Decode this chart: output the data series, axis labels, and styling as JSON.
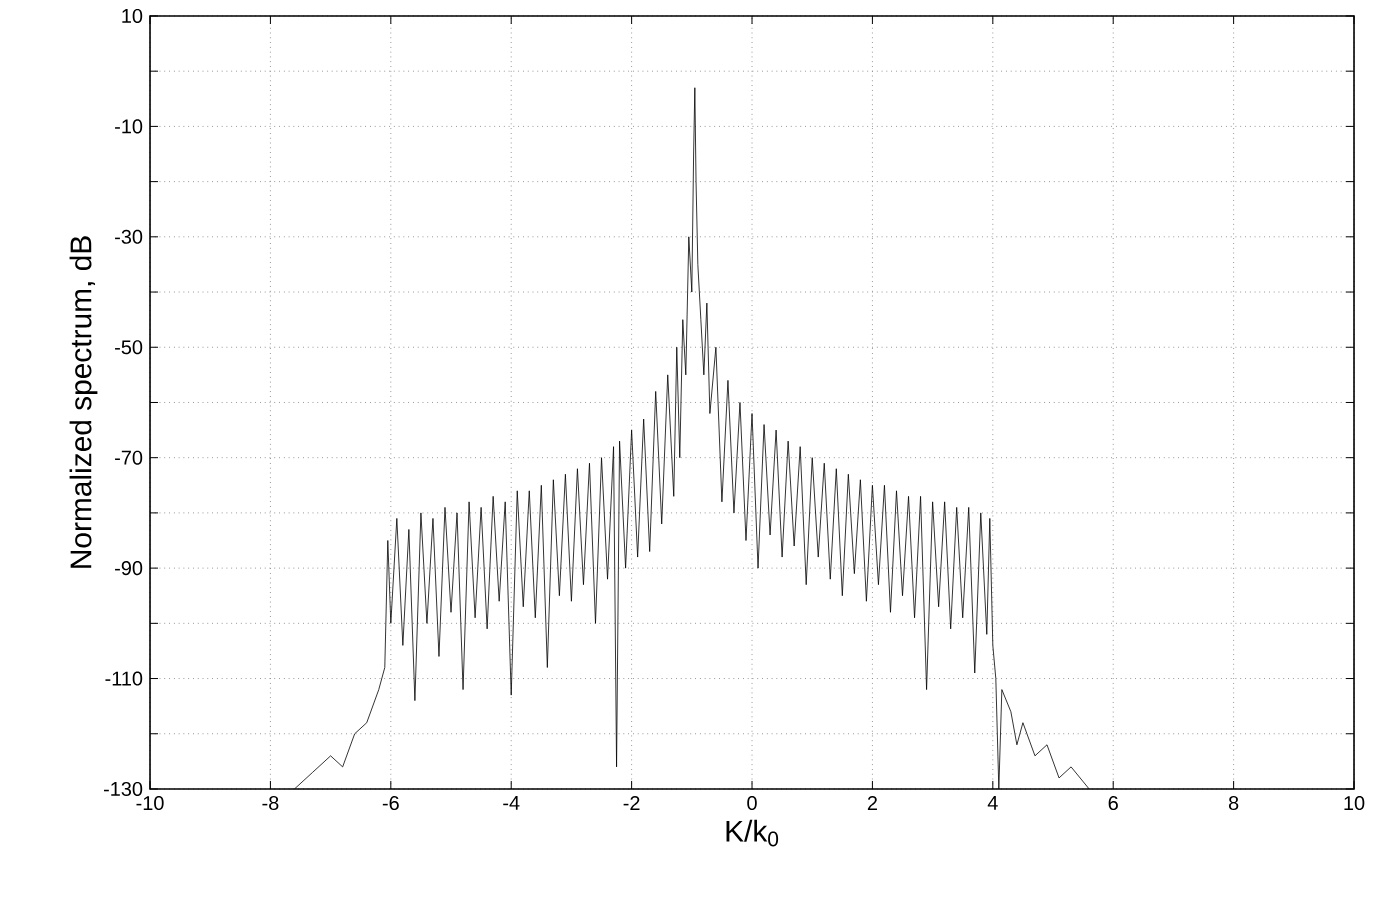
{
  "chart_data": {
    "type": "line",
    "xlabel": "K/k$_{0}$",
    "ylabel": "Normalized spectrum, dB",
    "xlim": [
      -10,
      10
    ],
    "ylim": [
      -130,
      10
    ],
    "xticks": [
      -10,
      -8,
      -6,
      -4,
      -2,
      0,
      2,
      4,
      6,
      8,
      10
    ],
    "yticks": [
      -130,
      {
        "value": -120,
        "label": null
      },
      -110,
      {
        "value": -100,
        "label": null
      },
      -90,
      {
        "value": -80,
        "label": null
      },
      -70,
      {
        "value": -60,
        "label": null
      },
      -50,
      {
        "value": -40,
        "label": null
      },
      -30,
      {
        "value": -20,
        "label": null
      },
      -10,
      {
        "value": 0,
        "label": null
      },
      10
    ],
    "grid": true,
    "x": [
      -7.6,
      -7.3,
      -7.0,
      -6.8,
      -6.6,
      -6.4,
      -6.2,
      -6.1,
      -6.05,
      -6.0,
      -5.9,
      -5.8,
      -5.7,
      -5.6,
      -5.5,
      -5.4,
      -5.3,
      -5.2,
      -5.1,
      -5.0,
      -4.9,
      -4.8,
      -4.7,
      -4.6,
      -4.5,
      -4.4,
      -4.3,
      -4.2,
      -4.1,
      -4.0,
      -3.9,
      -3.8,
      -3.7,
      -3.6,
      -3.5,
      -3.4,
      -3.3,
      -3.2,
      -3.1,
      -3.0,
      -2.9,
      -2.8,
      -2.7,
      -2.6,
      -2.5,
      -2.4,
      -2.3,
      -2.25,
      -2.2,
      -2.1,
      -2.0,
      -1.9,
      -1.8,
      -1.7,
      -1.6,
      -1.5,
      -1.4,
      -1.3,
      -1.25,
      -1.2,
      -1.15,
      -1.1,
      -1.05,
      -1.0,
      -0.97,
      -0.95,
      -0.93,
      -0.9,
      -0.85,
      -0.8,
      -0.75,
      -0.7,
      -0.6,
      -0.5,
      -0.4,
      -0.3,
      -0.2,
      -0.1,
      0.0,
      0.1,
      0.2,
      0.3,
      0.4,
      0.5,
      0.6,
      0.7,
      0.8,
      0.9,
      1.0,
      1.1,
      1.2,
      1.3,
      1.4,
      1.5,
      1.6,
      1.7,
      1.8,
      1.9,
      2.0,
      2.1,
      2.2,
      2.3,
      2.4,
      2.5,
      2.6,
      2.7,
      2.8,
      2.9,
      3.0,
      3.1,
      3.2,
      3.3,
      3.4,
      3.5,
      3.6,
      3.7,
      3.8,
      3.9,
      3.95,
      4.0,
      4.05,
      4.1,
      4.15,
      4.3,
      4.4,
      4.5,
      4.7,
      4.9,
      5.1,
      5.3,
      5.6
    ],
    "series": [
      {
        "color": "#000000",
        "values": [
          -130,
          -127,
          -124,
          -126,
          -120,
          -118,
          -112,
          -108,
          -85,
          -100,
          -81,
          -104,
          -83,
          -114,
          -80,
          -100,
          -81,
          -106,
          -79,
          -98,
          -80,
          -112,
          -78,
          -99,
          -79,
          -101,
          -77,
          -96,
          -78,
          -113,
          -76,
          -97,
          -76,
          -99,
          -75,
          -108,
          -74,
          -95,
          -73,
          -96,
          -72,
          -93,
          -71,
          -100,
          -70,
          -92,
          -68,
          -126,
          -67,
          -90,
          -65,
          -88,
          -63,
          -87,
          -58,
          -82,
          -55,
          -77,
          -50,
          -70,
          -45,
          -55,
          -30,
          -40,
          -15,
          -3,
          -20,
          -35,
          -45,
          -55,
          -42,
          -62,
          -50,
          -78,
          -56,
          -80,
          -60,
          -85,
          -62,
          -90,
          -64,
          -84,
          -65,
          -88,
          -67,
          -86,
          -68,
          -93,
          -70,
          -88,
          -71,
          -92,
          -72,
          -95,
          -73,
          -91,
          -74,
          -96,
          -75,
          -93,
          -75,
          -98,
          -76,
          -95,
          -77,
          -99,
          -77,
          -112,
          -78,
          -97,
          -78,
          -101,
          -79,
          -99,
          -79,
          -109,
          -80,
          -102,
          -81,
          -104,
          -110,
          -130,
          -112,
          -116,
          -122,
          -118,
          -124,
          -122,
          -128,
          -126,
          -130
        ]
      }
    ]
  }
}
